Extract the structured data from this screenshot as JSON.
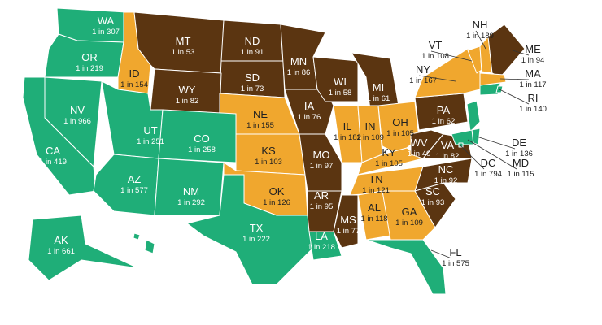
{
  "states": [
    {
      "abbr": "WA",
      "label": "1 in 307",
      "color": "#1fae78"
    },
    {
      "abbr": "OR",
      "label": "1 in 219",
      "color": "#1fae78"
    },
    {
      "abbr": "ID",
      "label": "1 in 154",
      "color": "#f0a72e"
    },
    {
      "abbr": "MT",
      "label": "1 in 53",
      "color": "#5b3511"
    },
    {
      "abbr": "ND",
      "label": "1 in 91",
      "color": "#5b3511"
    },
    {
      "abbr": "SD",
      "label": "1 in 73",
      "color": "#5b3511"
    },
    {
      "abbr": "WY",
      "label": "1 in 82",
      "color": "#5b3511"
    },
    {
      "abbr": "NE",
      "label": "1 in 155",
      "color": "#f0a72e"
    },
    {
      "abbr": "MN",
      "label": "1 in 86",
      "color": "#5b3511"
    },
    {
      "abbr": "IA",
      "label": "1 in 76",
      "color": "#5b3511"
    },
    {
      "abbr": "WI",
      "label": "1 in 58",
      "color": "#5b3511"
    },
    {
      "abbr": "MI",
      "label": "1 in 61",
      "color": "#5b3511"
    },
    {
      "abbr": "NV",
      "label": "1 in 966",
      "color": "#1fae78"
    },
    {
      "abbr": "CA",
      "label": "1 in 419",
      "color": "#1fae78"
    },
    {
      "abbr": "UT",
      "label": "1 in 251",
      "color": "#1fae78"
    },
    {
      "abbr": "CO",
      "label": "1 in 258",
      "color": "#1fae78"
    },
    {
      "abbr": "AZ",
      "label": "1 in 577",
      "color": "#1fae78"
    },
    {
      "abbr": "NM",
      "label": "1 in 292",
      "color": "#1fae78"
    },
    {
      "abbr": "KS",
      "label": "1 in 103",
      "color": "#f0a72e"
    },
    {
      "abbr": "OK",
      "label": "1 in 126",
      "color": "#f0a72e"
    },
    {
      "abbr": "TX",
      "label": "1 in 222",
      "color": "#1fae78"
    },
    {
      "abbr": "MO",
      "label": "1 in 97",
      "color": "#5b3511"
    },
    {
      "abbr": "AR",
      "label": "1 in 95",
      "color": "#5b3511"
    },
    {
      "abbr": "LA",
      "label": "1 in 218",
      "color": "#1fae78"
    },
    {
      "abbr": "IL",
      "label": "1 in 182",
      "color": "#f0a72e"
    },
    {
      "abbr": "IN",
      "label": "1 in 109",
      "color": "#f0a72e"
    },
    {
      "abbr": "OH",
      "label": "1 in 105",
      "color": "#f0a72e"
    },
    {
      "abbr": "KY",
      "label": "1 in 105",
      "color": "#f0a72e"
    },
    {
      "abbr": "TN",
      "label": "1 in 121",
      "color": "#f0a72e"
    },
    {
      "abbr": "MS",
      "label": "1 in 77",
      "color": "#5b3511"
    },
    {
      "abbr": "AL",
      "label": "1 in 118",
      "color": "#f0a72e"
    },
    {
      "abbr": "GA",
      "label": "1 in 109",
      "color": "#f0a72e"
    },
    {
      "abbr": "FL",
      "label": "1 in 575",
      "color": "#1fae78"
    },
    {
      "abbr": "SC",
      "label": "1 in 93",
      "color": "#5b3511"
    },
    {
      "abbr": "NC",
      "label": "1 in 92",
      "color": "#5b3511"
    },
    {
      "abbr": "VA",
      "label": "1 in 82",
      "color": "#5b3511"
    },
    {
      "abbr": "WV",
      "label": "1 in 40",
      "color": "#5b3511"
    },
    {
      "abbr": "PA",
      "label": "1 in 62",
      "color": "#5b3511"
    },
    {
      "abbr": "NY",
      "label": "1 in 167",
      "color": "#f0a72e"
    },
    {
      "abbr": "VT",
      "label": "1 in 108",
      "color": "#f0a72e"
    },
    {
      "abbr": "NH",
      "label": "1 in 189",
      "color": "#f0a72e"
    },
    {
      "abbr": "ME",
      "label": "1 in 94",
      "color": "#5b3511"
    },
    {
      "abbr": "MA",
      "label": "1 in 117",
      "color": "#f0a72e"
    },
    {
      "abbr": "RI",
      "label": "1 in 140",
      "color": "#1fae78"
    },
    {
      "abbr": "DE",
      "label": "1 in 136",
      "color": "#1fae78"
    },
    {
      "abbr": "MD",
      "label": "1 in 115",
      "color": "#1fae78"
    },
    {
      "abbr": "DC",
      "label": "1 in 794",
      "color": "#1fae78"
    },
    {
      "abbr": "AK",
      "label": "1 in 661",
      "color": "#1fae78"
    }
  ]
}
